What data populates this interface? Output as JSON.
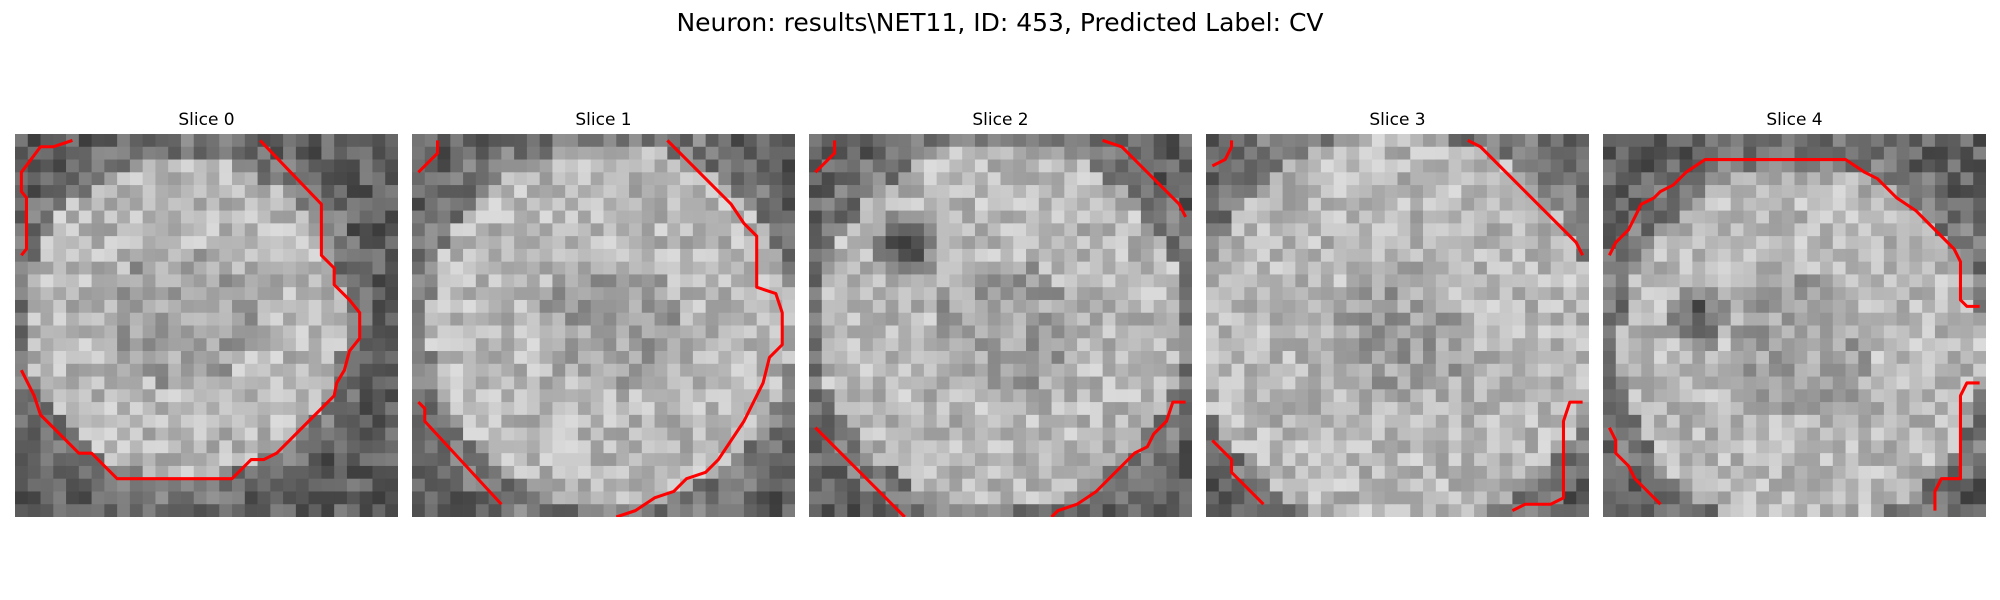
{
  "figure": {
    "title": "Neuron: results\\NET11, ID: 453, Predicted Label: CV"
  },
  "slices": [
    {
      "title": "Slice 0"
    },
    {
      "title": "Slice 1"
    },
    {
      "title": "Slice 2"
    },
    {
      "title": "Slice 3"
    },
    {
      "title": "Slice 4"
    }
  ],
  "colors": {
    "contour": "#ff0000",
    "background": "#ffffff"
  },
  "image_style": "grayscale-noise-micrograph",
  "grid_cells_per_side": 30
}
